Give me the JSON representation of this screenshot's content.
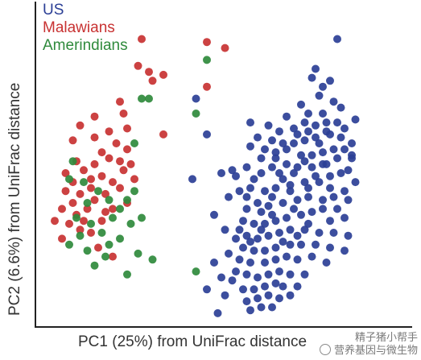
{
  "chart_data": {
    "type": "scatter",
    "xlabel": "PC1 (25%) from UniFrac distance",
    "ylabel": "PC2 (6.6%) from UniFrac distance",
    "xlim": [
      0,
      100
    ],
    "ylim": [
      0,
      100
    ],
    "legend_position": "top-left",
    "series": [
      {
        "name": "US",
        "color": "#2b3f96",
        "points": [
          [
            82,
            95
          ],
          [
            76,
            85
          ],
          [
            75,
            82
          ],
          [
            78,
            79
          ],
          [
            80,
            81
          ],
          [
            77,
            76
          ],
          [
            78,
            70
          ],
          [
            81,
            74
          ],
          [
            83,
            72
          ],
          [
            74,
            70
          ],
          [
            73,
            67
          ],
          [
            76,
            66
          ],
          [
            79,
            67
          ],
          [
            82,
            67
          ],
          [
            84,
            65
          ],
          [
            80,
            63
          ],
          [
            76,
            62
          ],
          [
            73,
            61
          ],
          [
            70,
            60
          ],
          [
            67,
            60
          ],
          [
            64,
            61
          ],
          [
            60,
            62
          ],
          [
            58,
            59
          ],
          [
            62,
            58
          ],
          [
            65,
            57
          ],
          [
            72,
            56
          ],
          [
            75,
            56
          ],
          [
            78,
            57
          ],
          [
            81,
            58
          ],
          [
            84,
            58
          ],
          [
            86,
            60
          ],
          [
            79,
            53
          ],
          [
            75,
            52
          ],
          [
            71,
            52
          ],
          [
            68,
            53
          ],
          [
            64,
            52
          ],
          [
            61,
            50
          ],
          [
            57,
            52
          ],
          [
            53,
            51
          ],
          [
            50,
            50
          ],
          [
            76,
            49
          ],
          [
            80,
            49
          ],
          [
            83,
            50
          ],
          [
            85,
            51
          ],
          [
            73,
            47
          ],
          [
            69,
            46
          ],
          [
            65,
            45
          ],
          [
            62,
            44
          ],
          [
            58,
            45
          ],
          [
            55,
            44
          ],
          [
            80,
            45
          ],
          [
            84,
            44
          ],
          [
            78,
            41
          ],
          [
            74,
            42
          ],
          [
            71,
            41
          ],
          [
            67,
            40
          ],
          [
            63,
            39
          ],
          [
            60,
            40
          ],
          [
            57,
            38
          ],
          [
            82,
            38
          ],
          [
            85,
            41
          ],
          [
            75,
            37
          ],
          [
            72,
            36
          ],
          [
            68,
            35
          ],
          [
            65,
            34
          ],
          [
            62,
            33
          ],
          [
            59,
            33
          ],
          [
            56,
            34
          ],
          [
            80,
            34
          ],
          [
            84,
            35
          ],
          [
            69,
            31
          ],
          [
            66,
            30
          ],
          [
            63,
            29
          ],
          [
            60,
            28
          ],
          [
            57,
            29
          ],
          [
            73,
            31
          ],
          [
            77,
            30
          ],
          [
            81,
            30
          ],
          [
            85,
            29
          ],
          [
            69,
            26
          ],
          [
            65,
            25
          ],
          [
            62,
            24
          ],
          [
            59,
            24
          ],
          [
            56,
            25
          ],
          [
            72,
            26
          ],
          [
            76,
            26
          ],
          [
            80,
            25
          ],
          [
            84,
            24
          ],
          [
            68,
            22
          ],
          [
            65,
            21
          ],
          [
            62,
            20
          ],
          [
            58,
            20
          ],
          [
            55,
            21
          ],
          [
            71,
            21
          ],
          [
            75,
            22
          ],
          [
            79,
            20
          ],
          [
            66,
            17
          ],
          [
            63,
            16
          ],
          [
            60,
            15
          ],
          [
            57,
            16
          ],
          [
            54,
            17
          ],
          [
            69,
            16
          ],
          [
            73,
            16
          ],
          [
            65,
            13
          ],
          [
            62,
            12
          ],
          [
            59,
            11
          ],
          [
            56,
            11
          ],
          [
            67,
            12
          ],
          [
            71,
            12
          ],
          [
            63,
            9
          ],
          [
            60,
            8
          ],
          [
            57,
            7
          ],
          [
            66,
            8
          ],
          [
            69,
            9
          ],
          [
            61,
            5
          ],
          [
            64,
            5
          ],
          [
            58,
            4
          ],
          [
            53,
            14
          ],
          [
            51,
            9
          ],
          [
            49,
            3
          ],
          [
            87,
            68
          ],
          [
            87,
            47
          ],
          [
            86,
            55
          ],
          [
            77,
            60
          ],
          [
            70,
            65
          ],
          [
            68,
            69
          ],
          [
            72,
            73
          ],
          [
            66,
            64
          ],
          [
            63,
            66
          ],
          [
            61,
            55
          ],
          [
            59,
            48
          ],
          [
            54,
            49
          ],
          [
            52,
            42
          ],
          [
            48,
            36
          ],
          [
            51,
            31
          ],
          [
            54,
            28
          ],
          [
            52,
            23
          ],
          [
            48,
            20
          ],
          [
            50,
            15
          ],
          [
            46,
            11
          ],
          [
            57,
            42
          ],
          [
            61,
            37
          ],
          [
            64,
            42
          ],
          [
            67,
            48
          ],
          [
            70,
            50
          ],
          [
            73,
            54
          ],
          [
            78,
            53
          ],
          [
            82,
            55
          ],
          [
            86,
            56
          ],
          [
            83,
            62
          ],
          [
            79,
            64
          ],
          [
            74,
            64
          ],
          [
            71,
            63
          ],
          [
            68,
            58
          ],
          [
            65,
            55
          ],
          [
            66,
            50
          ],
          [
            69,
            44
          ],
          [
            74,
            45
          ],
          [
            77,
            47
          ],
          [
            81,
            42
          ],
          [
            78,
            38
          ],
          [
            74,
            33
          ],
          [
            71,
            29
          ],
          [
            67,
            27
          ],
          [
            64,
            36
          ],
          [
            61,
            31
          ],
          [
            58,
            27
          ],
          [
            55,
            31
          ],
          [
            70,
            38
          ],
          [
            46,
            63
          ],
          [
            43,
            75
          ],
          [
            42,
            48
          ],
          [
            58,
            67
          ]
        ]
      },
      {
        "name": "Malawians",
        "color": "#c83232",
        "points": [
          [
            28,
            95
          ],
          [
            46,
            94
          ],
          [
            51,
            92
          ],
          [
            27,
            86
          ],
          [
            30,
            84
          ],
          [
            31,
            81
          ],
          [
            34,
            83
          ],
          [
            46,
            79
          ],
          [
            22,
            74
          ],
          [
            34,
            63
          ],
          [
            23,
            70
          ],
          [
            11,
            66
          ],
          [
            15,
            69
          ],
          [
            19,
            64
          ],
          [
            24,
            65
          ],
          [
            15,
            62
          ],
          [
            9,
            61
          ],
          [
            17,
            57
          ],
          [
            24,
            58
          ],
          [
            19,
            55
          ],
          [
            22,
            54
          ],
          [
            10,
            54
          ],
          [
            15,
            53
          ],
          [
            12,
            51
          ],
          [
            17,
            49
          ],
          [
            20,
            47
          ],
          [
            14,
            45
          ],
          [
            9,
            47
          ],
          [
            7,
            50
          ],
          [
            11,
            43
          ],
          [
            15,
            41
          ],
          [
            18,
            43
          ],
          [
            22,
            45
          ],
          [
            23,
            51
          ],
          [
            13,
            38
          ],
          [
            10,
            36
          ],
          [
            6,
            38
          ],
          [
            8,
            33
          ],
          [
            11,
            31
          ],
          [
            14,
            30
          ],
          [
            17,
            34
          ],
          [
            20,
            38
          ],
          [
            24,
            40
          ],
          [
            16,
            25
          ],
          [
            20,
            22
          ],
          [
            4,
            34
          ],
          [
            6,
            28
          ],
          [
            25,
            53
          ],
          [
            26,
            48
          ],
          [
            7,
            44
          ],
          [
            18,
            37
          ],
          [
            12,
            34
          ],
          [
            9,
            40
          ],
          [
            14,
            48
          ],
          [
            21,
            60
          ]
        ]
      },
      {
        "name": "Amerindians",
        "color": "#2f8a3c",
        "points": [
          [
            28,
            75
          ],
          [
            30,
            75
          ],
          [
            46,
            88
          ],
          [
            43,
            70
          ],
          [
            26,
            60
          ],
          [
            9,
            54
          ],
          [
            8,
            48
          ],
          [
            13,
            40
          ],
          [
            10,
            35
          ],
          [
            14,
            33
          ],
          [
            17,
            30
          ],
          [
            20,
            35
          ],
          [
            22,
            38
          ],
          [
            24,
            41
          ],
          [
            26,
            44
          ],
          [
            16,
            44
          ],
          [
            12,
            47
          ],
          [
            22,
            28
          ],
          [
            18,
            22
          ],
          [
            15,
            19
          ],
          [
            13,
            24
          ],
          [
            24,
            16
          ],
          [
            27,
            23
          ],
          [
            31,
            21
          ],
          [
            43,
            17
          ],
          [
            28,
            35
          ],
          [
            25,
            33
          ],
          [
            19,
            41
          ],
          [
            11,
            29
          ],
          [
            8,
            26
          ],
          [
            19,
            26
          ]
        ]
      }
    ]
  },
  "watermark": {
    "line1": "精子猪小帮手",
    "line2": "营养基因与微生物"
  }
}
